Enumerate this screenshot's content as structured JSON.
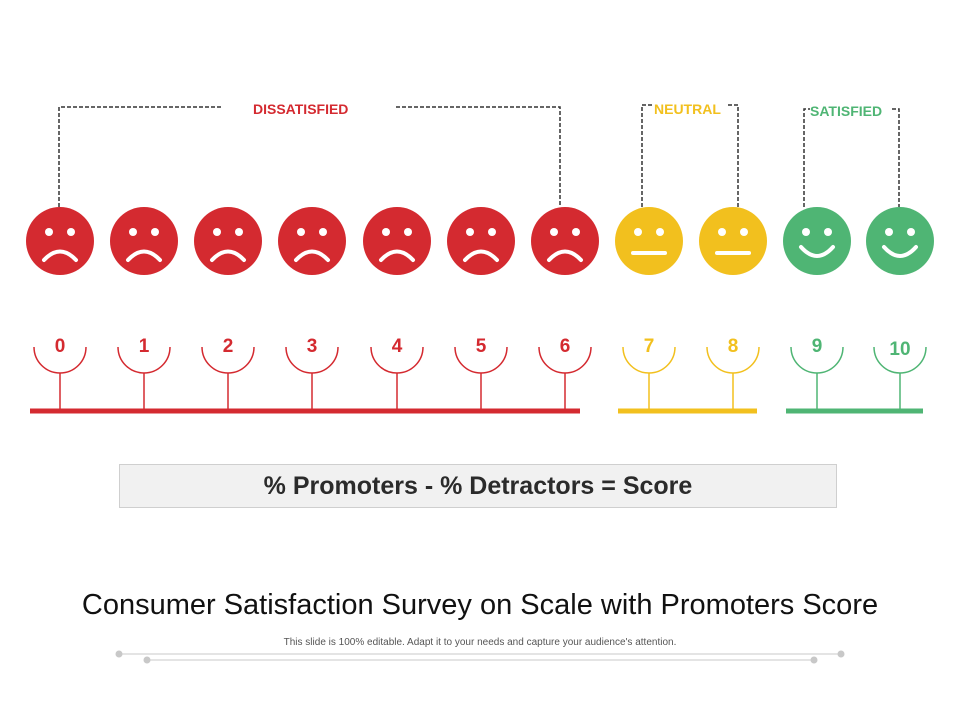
{
  "groups": {
    "dissatisfied": {
      "label": "DISSATISFIED",
      "color": "#d42a30"
    },
    "neutral": {
      "label": "NEUTRAL",
      "color": "#f2c01e"
    },
    "satisfied": {
      "label": "SATISFIED",
      "color": "#4fb574"
    }
  },
  "scale": [
    {
      "value": "0",
      "mood": "sad",
      "group": "dissatisfied"
    },
    {
      "value": "1",
      "mood": "sad",
      "group": "dissatisfied"
    },
    {
      "value": "2",
      "mood": "sad",
      "group": "dissatisfied"
    },
    {
      "value": "3",
      "mood": "sad",
      "group": "dissatisfied"
    },
    {
      "value": "4",
      "mood": "sad",
      "group": "dissatisfied"
    },
    {
      "value": "5",
      "mood": "sad",
      "group": "dissatisfied"
    },
    {
      "value": "6",
      "mood": "sad",
      "group": "dissatisfied"
    },
    {
      "value": "7",
      "mood": "neutral",
      "group": "neutral"
    },
    {
      "value": "8",
      "mood": "neutral",
      "group": "neutral"
    },
    {
      "value": "9",
      "mood": "happy",
      "group": "satisfied"
    },
    {
      "value": "10",
      "mood": "happy",
      "group": "satisfied"
    }
  ],
  "formula": "% Promoters - % Detractors = Score",
  "title": "Consumer Satisfaction Survey on Scale with Promoters Score",
  "subtitle": "This slide is 100% editable. Adapt it to your needs and capture your audience's attention."
}
